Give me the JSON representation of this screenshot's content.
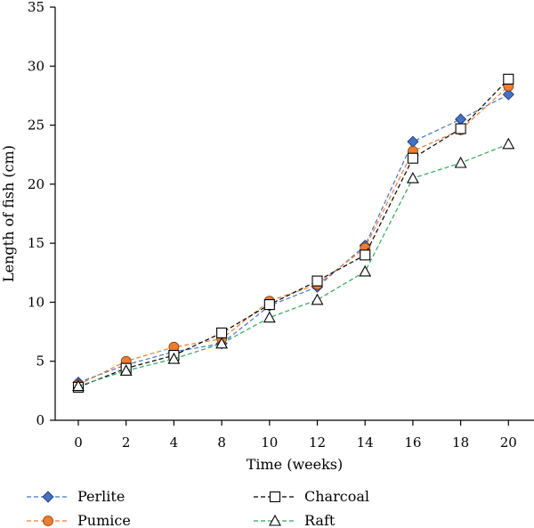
{
  "chart_data": {
    "type": "line",
    "xlabel": "Time (weeks)",
    "ylabel": "Length of fish (cm)",
    "x_categories": [
      "0",
      "2",
      "4",
      "8",
      "10",
      "12",
      "14",
      "16",
      "18",
      "20"
    ],
    "ylim": [
      0,
      35
    ],
    "y_ticks": [
      0,
      5,
      10,
      15,
      20,
      25,
      30,
      35
    ],
    "grid": false,
    "legend_position": "bottom",
    "series": [
      {
        "name": "Perlite",
        "marker": "diamond",
        "color": "#4472C4",
        "values": [
          3.2,
          4.7,
          5.8,
          6.5,
          9.7,
          11.3,
          14.8,
          23.6,
          25.5,
          27.6
        ]
      },
      {
        "name": "Pumice",
        "marker": "circle",
        "color": "#ED7D31",
        "values": [
          3.0,
          5.0,
          6.2,
          6.9,
          10.1,
          11.5,
          14.6,
          22.8,
          24.6,
          28.3
        ]
      },
      {
        "name": "Charcoal",
        "marker": "square",
        "color": "#000000",
        "values": [
          2.8,
          4.4,
          5.5,
          7.4,
          9.8,
          11.8,
          14.0,
          22.2,
          24.7,
          28.9
        ]
      },
      {
        "name": "Raft",
        "marker": "triangle",
        "color": "#2EA75A",
        "values": [
          2.9,
          4.2,
          5.2,
          6.5,
          8.7,
          10.2,
          12.6,
          20.5,
          21.8,
          23.4
        ]
      }
    ]
  }
}
